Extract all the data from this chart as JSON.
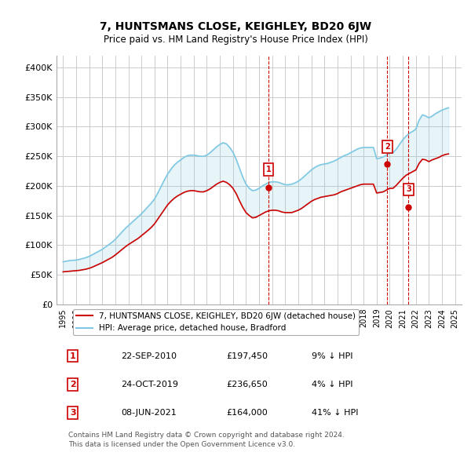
{
  "title": "7, HUNTSMANS CLOSE, KEIGHLEY, BD20 6JW",
  "subtitle": "Price paid vs. HM Land Registry's House Price Index (HPI)",
  "hpi_label": "HPI: Average price, detached house, Bradford",
  "property_label": "7, HUNTSMANS CLOSE, KEIGHLEY, BD20 6JW (detached house)",
  "hpi_color": "#7ec8e3",
  "property_color": "#cc0000",
  "sale_color": "#cc0000",
  "vline_color": "#cc0000",
  "grid_color": "#cccccc",
  "bg_color": "#ffffff",
  "ylim": [
    0,
    420000
  ],
  "yticks": [
    0,
    50000,
    100000,
    150000,
    200000,
    250000,
    300000,
    350000,
    400000
  ],
  "ytick_labels": [
    "£0",
    "£50K",
    "£100K",
    "£150K",
    "£200K",
    "£250K",
    "£300K",
    "£350K",
    "£400K"
  ],
  "sales": [
    {
      "date_num": 2010.73,
      "price": 197450,
      "label": "1"
    },
    {
      "date_num": 2019.81,
      "price": 236650,
      "label": "2"
    },
    {
      "date_num": 2021.44,
      "price": 164000,
      "label": "3"
    }
  ],
  "sale_table": [
    {
      "num": "1",
      "date": "22-SEP-2010",
      "price": "£197,450",
      "note": "9% ↓ HPI"
    },
    {
      "num": "2",
      "date": "24-OCT-2019",
      "price": "£236,650",
      "note": "4% ↓ HPI"
    },
    {
      "num": "3",
      "date": "08-JUN-2021",
      "price": "£164,000",
      "note": "41% ↓ HPI"
    }
  ],
  "footer": "Contains HM Land Registry data © Crown copyright and database right 2024.\nThis data is licensed under the Open Government Licence v3.0.",
  "hpi_data_x": [
    1995.0,
    1995.25,
    1995.5,
    1995.75,
    1996.0,
    1996.25,
    1996.5,
    1996.75,
    1997.0,
    1997.25,
    1997.5,
    1997.75,
    1998.0,
    1998.25,
    1998.5,
    1998.75,
    1999.0,
    1999.25,
    1999.5,
    1999.75,
    2000.0,
    2000.25,
    2000.5,
    2000.75,
    2001.0,
    2001.25,
    2001.5,
    2001.75,
    2002.0,
    2002.25,
    2002.5,
    2002.75,
    2003.0,
    2003.25,
    2003.5,
    2003.75,
    2004.0,
    2004.25,
    2004.5,
    2004.75,
    2005.0,
    2005.25,
    2005.5,
    2005.75,
    2006.0,
    2006.25,
    2006.5,
    2006.75,
    2007.0,
    2007.25,
    2007.5,
    2007.75,
    2008.0,
    2008.25,
    2008.5,
    2008.75,
    2009.0,
    2009.25,
    2009.5,
    2009.75,
    2010.0,
    2010.25,
    2010.5,
    2010.75,
    2011.0,
    2011.25,
    2011.5,
    2011.75,
    2012.0,
    2012.25,
    2012.5,
    2012.75,
    2013.0,
    2013.25,
    2013.5,
    2013.75,
    2014.0,
    2014.25,
    2014.5,
    2014.75,
    2015.0,
    2015.25,
    2015.5,
    2015.75,
    2016.0,
    2016.25,
    2016.5,
    2016.75,
    2017.0,
    2017.25,
    2017.5,
    2017.75,
    2018.0,
    2018.25,
    2018.5,
    2018.75,
    2019.0,
    2019.25,
    2019.5,
    2019.75,
    2020.0,
    2020.25,
    2020.5,
    2020.75,
    2021.0,
    2021.25,
    2021.5,
    2021.75,
    2022.0,
    2022.25,
    2022.5,
    2022.75,
    2023.0,
    2023.25,
    2023.5,
    2023.75,
    2024.0,
    2024.25,
    2024.5
  ],
  "hpi_data_y": [
    72000,
    73000,
    74000,
    74500,
    75000,
    76000,
    77500,
    79000,
    81000,
    84000,
    87000,
    90000,
    93000,
    97000,
    101000,
    105000,
    110000,
    116000,
    122000,
    128000,
    133000,
    138000,
    143000,
    148000,
    153000,
    159000,
    165000,
    171000,
    178000,
    188000,
    199000,
    210000,
    220000,
    228000,
    235000,
    240000,
    244000,
    248000,
    251000,
    252000,
    252000,
    251000,
    250000,
    250000,
    252000,
    256000,
    261000,
    266000,
    270000,
    273000,
    271000,
    265000,
    257000,
    245000,
    230000,
    215000,
    203000,
    196000,
    192000,
    193000,
    196000,
    200000,
    203000,
    206000,
    207000,
    207000,
    206000,
    204000,
    202000,
    202000,
    203000,
    205000,
    208000,
    212000,
    217000,
    222000,
    227000,
    231000,
    234000,
    236000,
    237000,
    238000,
    240000,
    242000,
    245000,
    248000,
    251000,
    253000,
    256000,
    259000,
    262000,
    264000,
    265000,
    265000,
    265000,
    265000,
    246000,
    247000,
    249000,
    252000,
    256000,
    256000,
    262000,
    270000,
    278000,
    284000,
    289000,
    292000,
    296000,
    311000,
    320000,
    318000,
    315000,
    318000,
    322000,
    325000,
    328000,
    330000,
    332000
  ],
  "prop_data_x": [
    1995.0,
    1995.25,
    1995.5,
    1995.75,
    1996.0,
    1996.25,
    1996.5,
    1996.75,
    1997.0,
    1997.25,
    1997.5,
    1997.75,
    1998.0,
    1998.25,
    1998.5,
    1998.75,
    1999.0,
    1999.25,
    1999.5,
    1999.75,
    2000.0,
    2000.25,
    2000.5,
    2000.75,
    2001.0,
    2001.25,
    2001.5,
    2001.75,
    2002.0,
    2002.25,
    2002.5,
    2002.75,
    2003.0,
    2003.25,
    2003.5,
    2003.75,
    2004.0,
    2004.25,
    2004.5,
    2004.75,
    2005.0,
    2005.25,
    2005.5,
    2005.75,
    2006.0,
    2006.25,
    2006.5,
    2006.75,
    2007.0,
    2007.25,
    2007.5,
    2007.75,
    2008.0,
    2008.25,
    2008.5,
    2008.75,
    2009.0,
    2009.25,
    2009.5,
    2009.75,
    2010.0,
    2010.25,
    2010.5,
    2010.75,
    2011.0,
    2011.25,
    2011.5,
    2011.75,
    2012.0,
    2012.25,
    2012.5,
    2012.75,
    2013.0,
    2013.25,
    2013.5,
    2013.75,
    2014.0,
    2014.25,
    2014.5,
    2014.75,
    2015.0,
    2015.25,
    2015.5,
    2015.75,
    2016.0,
    2016.25,
    2016.5,
    2016.75,
    2017.0,
    2017.25,
    2017.5,
    2017.75,
    2018.0,
    2018.25,
    2018.5,
    2018.75,
    2019.0,
    2019.25,
    2019.5,
    2019.75,
    2020.0,
    2020.25,
    2020.5,
    2020.75,
    2021.0,
    2021.25,
    2021.5,
    2021.75,
    2022.0,
    2022.25,
    2022.5,
    2022.75,
    2023.0,
    2023.25,
    2023.5,
    2023.75,
    2024.0,
    2024.25,
    2024.5
  ],
  "prop_data_y": [
    55000,
    55500,
    56000,
    56500,
    57000,
    57500,
    58500,
    59500,
    61000,
    63000,
    65500,
    68000,
    70500,
    73500,
    76500,
    79500,
    83500,
    88000,
    92500,
    97000,
    101000,
    104500,
    108000,
    111500,
    116000,
    120500,
    125000,
    130000,
    136000,
    144000,
    152000,
    160000,
    168000,
    174000,
    179000,
    183000,
    186000,
    189000,
    191000,
    192000,
    192000,
    191000,
    190000,
    190000,
    192000,
    195000,
    199000,
    203000,
    206000,
    208000,
    206000,
    202000,
    196000,
    187000,
    175000,
    164000,
    155000,
    150000,
    146000,
    147000,
    150000,
    153000,
    156000,
    158000,
    159000,
    159000,
    158000,
    156000,
    155000,
    155000,
    155000,
    157000,
    159000,
    162000,
    166000,
    170000,
    174000,
    177000,
    179000,
    181000,
    182000,
    183000,
    184000,
    185000,
    187000,
    190000,
    192000,
    194000,
    196000,
    198000,
    200000,
    202000,
    203000,
    203000,
    203000,
    203000,
    188000,
    189000,
    190000,
    193000,
    196000,
    196000,
    201000,
    207000,
    213000,
    218000,
    221000,
    224000,
    227000,
    238000,
    245000,
    244000,
    241000,
    244000,
    246000,
    248000,
    251000,
    253000,
    254000
  ]
}
